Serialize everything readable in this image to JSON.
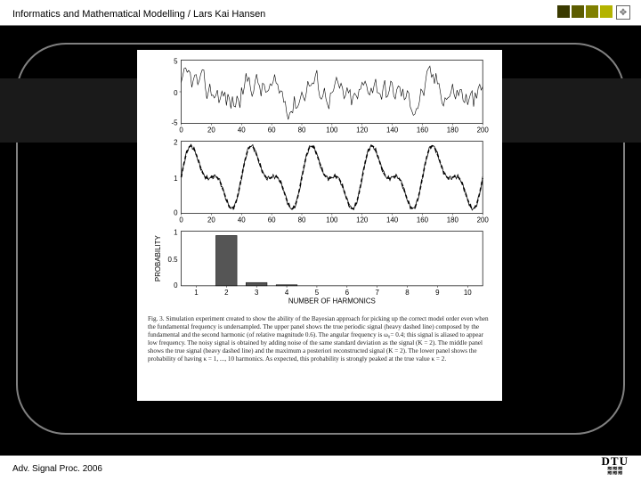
{
  "header": {
    "text": "Informatics and Mathematical Modelling / Lars Kai Hansen"
  },
  "footer": {
    "text": "Adv. Signal Proc. 2006"
  },
  "cornerColors": [
    "#3a3a00",
    "#5c5c00",
    "#808000",
    "#b3b300"
  ],
  "dtuLogo": {
    "text": "DTU"
  },
  "figure": {
    "panel1": {
      "type": "line",
      "xlim": [
        0,
        200
      ],
      "ylim": [
        -5,
        5
      ],
      "xticks": [
        0,
        20,
        40,
        60,
        80,
        100,
        120,
        140,
        160,
        180,
        200
      ],
      "yticks": [
        -5,
        0,
        5
      ],
      "line_color": "#000000",
      "line_width": 0.6,
      "background_color": "#ffffff",
      "box_color": "#000000"
    },
    "panel2": {
      "type": "line",
      "xlim": [
        0,
        200
      ],
      "ylim": [
        0,
        2
      ],
      "xticks": [
        0,
        20,
        40,
        60,
        80,
        100,
        120,
        140,
        160,
        180,
        200
      ],
      "yticks": [
        0,
        1,
        2
      ],
      "solid_color": "#000000",
      "dashed_color": "#000000",
      "line_width": 0.8,
      "dashed_width": 1.6,
      "dash_pattern": "4,3",
      "background_color": "#ffffff",
      "box_color": "#000000"
    },
    "panel3": {
      "type": "bar",
      "xlim": [
        0.5,
        10.5
      ],
      "ylim": [
        0,
        1
      ],
      "xticks": [
        1,
        2,
        3,
        4,
        5,
        6,
        7,
        8,
        9,
        10
      ],
      "yticks": [
        0,
        0.5,
        1
      ],
      "categories": [
        1,
        2,
        3,
        4,
        5,
        6,
        7,
        8,
        9,
        10
      ],
      "values": [
        0,
        0.92,
        0.06,
        0.02,
        0,
        0,
        0,
        0,
        0,
        0
      ],
      "bar_color": "#555555",
      "bar_edge_color": "#000000",
      "bar_width": 0.7,
      "xlabel": "NUMBER OF HARMONICS",
      "ylabel": "PROBABILITY",
      "background_color": "#ffffff",
      "box_color": "#000000"
    },
    "caption": {
      "prefix": "Fig. 3.",
      "text": "Simulation experiment created to show the ability of the Bayesian approach for picking up the correct model order even when the fundamental frequency is undersampled. The upper panel shows the true periodic signal (heavy dashed line) composed by the fundamental and the second harmonic (of relative magnitude 0.6). The angular frequency is ω₀= 0.4; this signal is aliased to appear low frequency. The noisy signal is obtained by adding noise of the same standard deviation as the signal (K = 2). The middle panel shows the true signal (heavy dashed line) and the maximum a posteriori reconstructed signal (K = 2). The lower panel shows the probability of having κ = 1, ..., 10 harmonics. As expected, this probability is strongly peaked at the true value κ = 2.",
      "fontsize": 7.2,
      "font_family": "Times New Roman"
    }
  }
}
